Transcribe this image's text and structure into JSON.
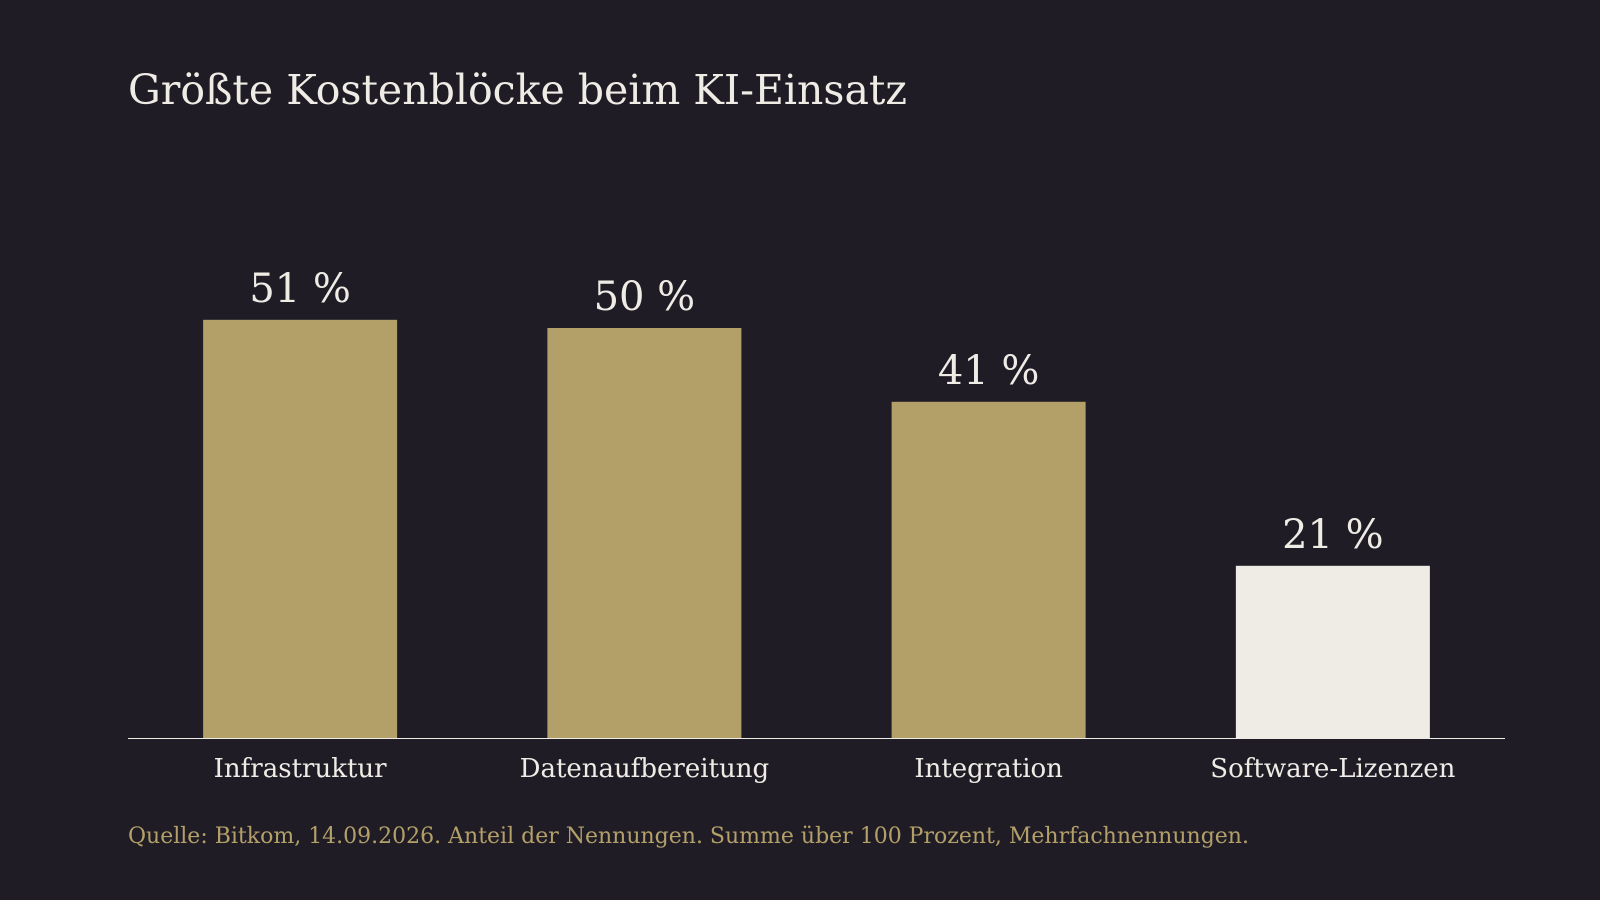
{
  "title": "Größte Kostenblöcke beim KI-Einsatz",
  "source": "Quelle: Bitkom, 14.09.2026. Anteil der Nennungen. Summe über 100 Prozent, Mehrfachnennungen.",
  "colors": {
    "background": "#1f1c26",
    "bar": "#b3a069",
    "highlight_bar": "#efece6",
    "text": "#efece6",
    "source_text": "#b3a069",
    "axis": "#efece6"
  },
  "chart_data": {
    "type": "bar",
    "title": "Größte Kostenblöcke beim KI-Einsatz",
    "categories": [
      "Infrastruktur",
      "Datenaufbereitung",
      "Integration",
      "Software-Lizenzen"
    ],
    "values": [
      51,
      50,
      41,
      21
    ],
    "value_labels": [
      "51 %",
      "50 %",
      "41 %",
      "21 %"
    ],
    "highlighted_category": "Software-Lizenzen",
    "xlabel": "",
    "ylabel": "",
    "ylim": [
      0,
      60
    ],
    "grid": false,
    "legend": "none"
  }
}
